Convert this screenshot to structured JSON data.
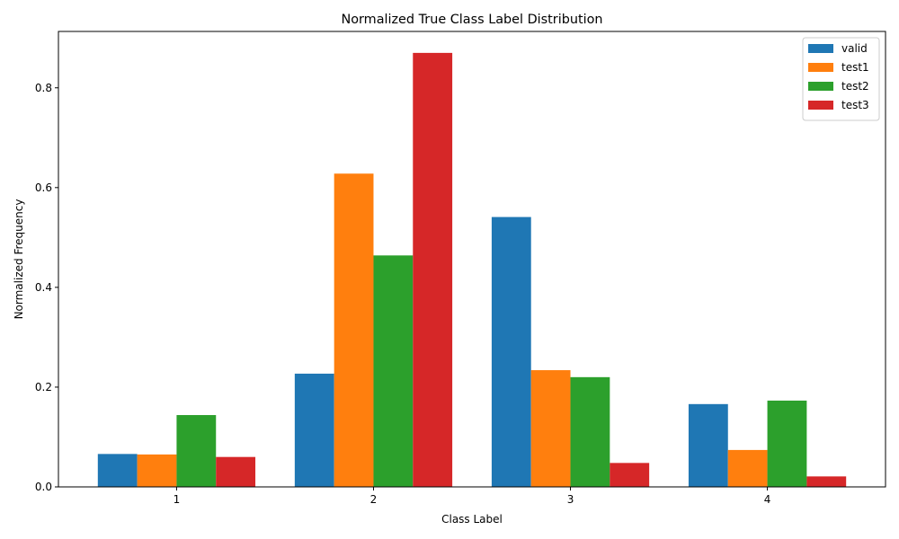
{
  "chart_data": {
    "type": "bar",
    "title": "Normalized True Class Label Distribution",
    "xlabel": "Class Label",
    "ylabel": "Normalized Frequency",
    "categories": [
      "1",
      "2",
      "3",
      "4"
    ],
    "ylim": [
      0,
      0.913
    ],
    "yticks": [
      "0.0",
      "0.2",
      "0.4",
      "0.6",
      "0.8"
    ],
    "grid": false,
    "legend_position": "top-right",
    "series": [
      {
        "name": "valid",
        "color": "#1f77b4",
        "values": [
          0.066,
          0.227,
          0.541,
          0.166
        ]
      },
      {
        "name": "test1",
        "color": "#ff7f0e",
        "values": [
          0.065,
          0.628,
          0.234,
          0.074
        ]
      },
      {
        "name": "test2",
        "color": "#2ca02c",
        "values": [
          0.144,
          0.464,
          0.22,
          0.173
        ]
      },
      {
        "name": "test3",
        "color": "#d62728",
        "values": [
          0.06,
          0.87,
          0.048,
          0.021
        ]
      }
    ]
  }
}
